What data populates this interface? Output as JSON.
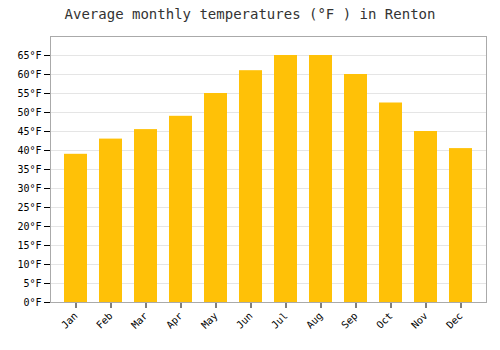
{
  "chart_data": {
    "type": "bar",
    "title": "Average monthly temperatures (°F ) in Renton",
    "categories": [
      "Jan",
      "Feb",
      "Mar",
      "Apr",
      "May",
      "Jun",
      "Jul",
      "Aug",
      "Sep",
      "Oct",
      "Nov",
      "Dec"
    ],
    "values": [
      39,
      43,
      45.5,
      49,
      55,
      61,
      65,
      65,
      60,
      52.5,
      45,
      40.5
    ],
    "color": "#FFC107",
    "ylim": [
      0,
      70
    ],
    "yticks": [
      {
        "value": 0,
        "label": "0°F"
      },
      {
        "value": 5,
        "label": "5°F"
      },
      {
        "value": 10,
        "label": "10°F"
      },
      {
        "value": 15,
        "label": "15°F"
      },
      {
        "value": 20,
        "label": "20°F"
      },
      {
        "value": 25,
        "label": "25°F"
      },
      {
        "value": 30,
        "label": "30°F"
      },
      {
        "value": 35,
        "label": "35°F"
      },
      {
        "value": 40,
        "label": "40°F"
      },
      {
        "value": 45,
        "label": "45°F"
      },
      {
        "value": 50,
        "label": "50°F"
      },
      {
        "value": 55,
        "label": "55°F"
      },
      {
        "value": 60,
        "label": "60°F"
      },
      {
        "value": 65,
        "label": "65°F"
      }
    ],
    "grid": true
  }
}
